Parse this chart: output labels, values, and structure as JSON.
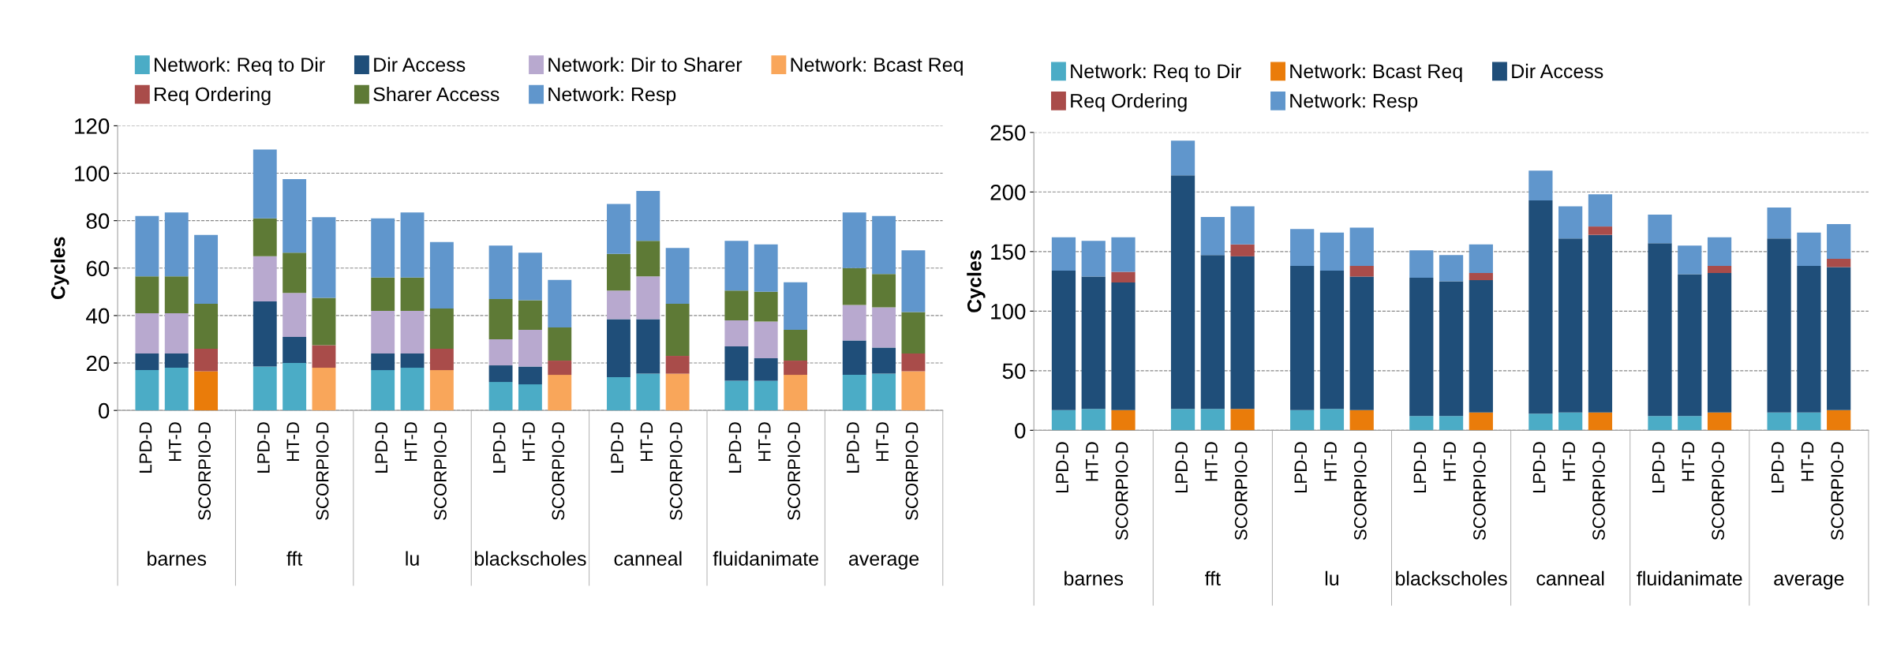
{
  "chart_data": [
    {
      "type": "bar",
      "stacked": true,
      "ylabel": "Cycles",
      "ylim": [
        0,
        120
      ],
      "yticks": [
        0,
        20,
        40,
        60,
        80,
        100,
        120
      ],
      "grid": "y",
      "legend": "top",
      "categories": [
        "LPD-D",
        "HT-D",
        "SCORPIO-D",
        "LPD-D",
        "HT-D",
        "SCORPIO-D",
        "LPD-D",
        "HT-D",
        "SCORPIO-D",
        "LPD-D",
        "HT-D",
        "SCORPIO-D",
        "LPD-D",
        "HT-D",
        "SCORPIO-D",
        "LPD-D",
        "HT-D",
        "SCORPIO-D",
        "LPD-D",
        "HT-D",
        "SCORPIO-D"
      ],
      "annotations": [
        "barnes",
        "fft",
        "lu",
        "blackscholes",
        "canneal",
        "fluidanimate",
        "average"
      ],
      "series": [
        {
          "name": "Network: Req to Dir",
          "color": "#4bacc6",
          "values": [
            17,
            18,
            null,
            18.5,
            20,
            null,
            17,
            18,
            null,
            12,
            11,
            null,
            14,
            15.5,
            null,
            12.5,
            12.5,
            null,
            15,
            15.5,
            null
          ]
        },
        {
          "name": "Dir Access",
          "color": "#1f4e79",
          "values": [
            7,
            6,
            null,
            27.5,
            11,
            null,
            7,
            6,
            null,
            7,
            7.5,
            null,
            24.5,
            23,
            null,
            14.5,
            9.5,
            null,
            14.5,
            11,
            null
          ]
        },
        {
          "name": "Network: Dir to Sharer",
          "color": "#b8a9cf",
          "values": [
            17,
            17,
            null,
            19,
            18.5,
            null,
            18,
            18,
            null,
            11,
            15.5,
            null,
            12,
            18,
            null,
            11,
            15.5,
            null,
            15,
            17,
            null
          ]
        },
        {
          "name": "Network: Bcast Req",
          "color": "#f9a65a",
          "colors": [
            "#f9a65a",
            "#f9a65a",
            "#ea7c0a",
            "#f9a65a",
            "#f9a65a",
            "#f9a65a",
            "#f9a65a",
            "#f9a65a",
            "#f9a65a",
            "#f9a65a",
            "#f9a65a",
            "#f9a65a",
            "#f9a65a",
            "#f9a65a",
            "#f9a65a",
            "#f9a65a",
            "#f9a65a",
            "#f9a65a",
            "#f9a65a",
            "#f9a65a",
            "#f9a65a"
          ],
          "values": [
            null,
            null,
            16.5,
            null,
            null,
            18,
            null,
            null,
            17,
            null,
            null,
            15,
            null,
            null,
            15.5,
            null,
            null,
            15,
            null,
            null,
            16.5
          ]
        },
        {
          "name": "Req Ordering",
          "color": "#a94c4a",
          "values": [
            null,
            null,
            9.5,
            null,
            null,
            9.5,
            null,
            null,
            9,
            null,
            null,
            6,
            null,
            null,
            7.5,
            null,
            null,
            6,
            null,
            null,
            7.5
          ]
        },
        {
          "name": "Sharer Access",
          "color": "#5e7a36",
          "values": [
            15.5,
            15.5,
            19,
            16,
            17,
            20,
            14,
            14,
            17,
            17,
            12.5,
            14,
            15.5,
            15,
            22,
            12.5,
            12.5,
            13,
            15.5,
            14,
            17.5
          ]
        },
        {
          "name": "Network: Resp",
          "color": "#6096cc",
          "values": [
            25.5,
            27,
            29,
            29,
            31,
            34,
            25,
            27.5,
            28,
            22.5,
            20,
            20,
            21,
            21,
            23.5,
            21,
            20,
            20,
            23.5,
            24.5,
            26
          ]
        }
      ]
    },
    {
      "type": "bar",
      "stacked": true,
      "ylabel": "Cycles",
      "ylim": [
        0,
        250
      ],
      "yticks": [
        0,
        50,
        100,
        150,
        200,
        250
      ],
      "grid": "y",
      "legend": "top",
      "categories": [
        "LPD-D",
        "HT-D",
        "SCORPIO-D",
        "LPD-D",
        "HT-D",
        "SCORPIO-D",
        "LPD-D",
        "HT-D",
        "SCORPIO-D",
        "LPD-D",
        "HT-D",
        "SCORPIO-D",
        "LPD-D",
        "HT-D",
        "SCORPIO-D",
        "LPD-D",
        "HT-D",
        "SCORPIO-D",
        "LPD-D",
        "HT-D",
        "SCORPIO-D"
      ],
      "annotations": [
        "barnes",
        "fft",
        "lu",
        "blackscholes",
        "canneal",
        "fluidanimate",
        "average"
      ],
      "series": [
        {
          "name": "Network: Req to Dir",
          "color": "#4bacc6",
          "values": [
            17,
            18,
            null,
            18,
            18,
            null,
            17,
            18,
            null,
            12,
            12,
            null,
            14,
            15,
            null,
            12,
            12,
            null,
            15,
            15,
            null
          ]
        },
        {
          "name": "Network: Bcast Req",
          "color": "#ea7c0a",
          "values": [
            null,
            null,
            17,
            null,
            null,
            18,
            null,
            null,
            17,
            null,
            null,
            15,
            null,
            null,
            15,
            null,
            null,
            15,
            null,
            null,
            17
          ]
        },
        {
          "name": "Dir Access",
          "color": "#1f4e79",
          "values": [
            117,
            111,
            107,
            196,
            129,
            128,
            121,
            116,
            112,
            116,
            113,
            111,
            179,
            146,
            149,
            145,
            119,
            117,
            146,
            123,
            120
          ]
        },
        {
          "name": "Req Ordering",
          "color": "#a94c4a",
          "values": [
            null,
            null,
            9,
            null,
            null,
            10,
            null,
            null,
            9,
            null,
            null,
            6,
            null,
            null,
            7,
            null,
            null,
            6,
            null,
            null,
            7
          ]
        },
        {
          "name": "Network: Resp",
          "color": "#6096cc",
          "values": [
            28,
            30,
            29,
            29,
            32,
            32,
            31,
            32,
            32,
            23,
            22,
            24,
            25,
            27,
            27,
            24,
            24,
            24,
            26,
            28,
            29
          ]
        }
      ]
    }
  ]
}
